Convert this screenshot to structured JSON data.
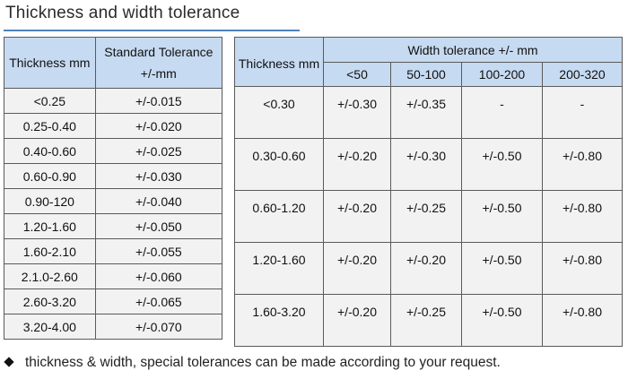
{
  "title": "Thickness and width tolerance",
  "thickness_table": {
    "headers": [
      "Thickness mm",
      "Standard Tolerance +/-mm"
    ],
    "rows": [
      [
        "<0.25",
        "+/-0.015"
      ],
      [
        "0.25-0.40",
        "+/-0.020"
      ],
      [
        "0.40-0.60",
        "+/-0.025"
      ],
      [
        "0.60-0.90",
        "+/-0.030"
      ],
      [
        "0.90-120",
        "+/-0.040"
      ],
      [
        "1.20-1.60",
        "+/-0.050"
      ],
      [
        "1.60-2.10",
        "+/-0.055"
      ],
      [
        "2.1.0-2.60",
        "+/-0.060"
      ],
      [
        "2.60-3.20",
        "+/-0.065"
      ],
      [
        "3.20-4.00",
        "+/-0.070"
      ]
    ]
  },
  "width_table": {
    "thickness_header": "Thickness mm",
    "group_header": "Width tolerance +/- mm",
    "columns": [
      "<50",
      "50-100",
      "100-200",
      "200-320"
    ],
    "rows": [
      [
        "<0.30",
        "+/-0.30",
        "+/-0.35",
        "-",
        "-"
      ],
      [
        "0.30-0.60",
        "+/-0.20",
        "+/-0.30",
        "+/-0.50",
        "+/-0.80"
      ],
      [
        "0.60-1.20",
        "+/-0.20",
        "+/-0.25",
        "+/-0.50",
        "+/-0.80"
      ],
      [
        "1.20-1.60",
        "+/-0.20",
        "+/-0.20",
        "+/-0.50",
        "+/-0.80"
      ],
      [
        "1.60-3.20",
        "+/-0.20",
        "+/-0.25",
        "+/-0.50",
        "+/-0.80"
      ]
    ]
  },
  "note": "thickness & width, special tolerances can be made according to your request.",
  "colors": {
    "header_bg": "#c6daf1",
    "cell_bg": "#f2f2f2",
    "rule": "#4f81bd"
  }
}
